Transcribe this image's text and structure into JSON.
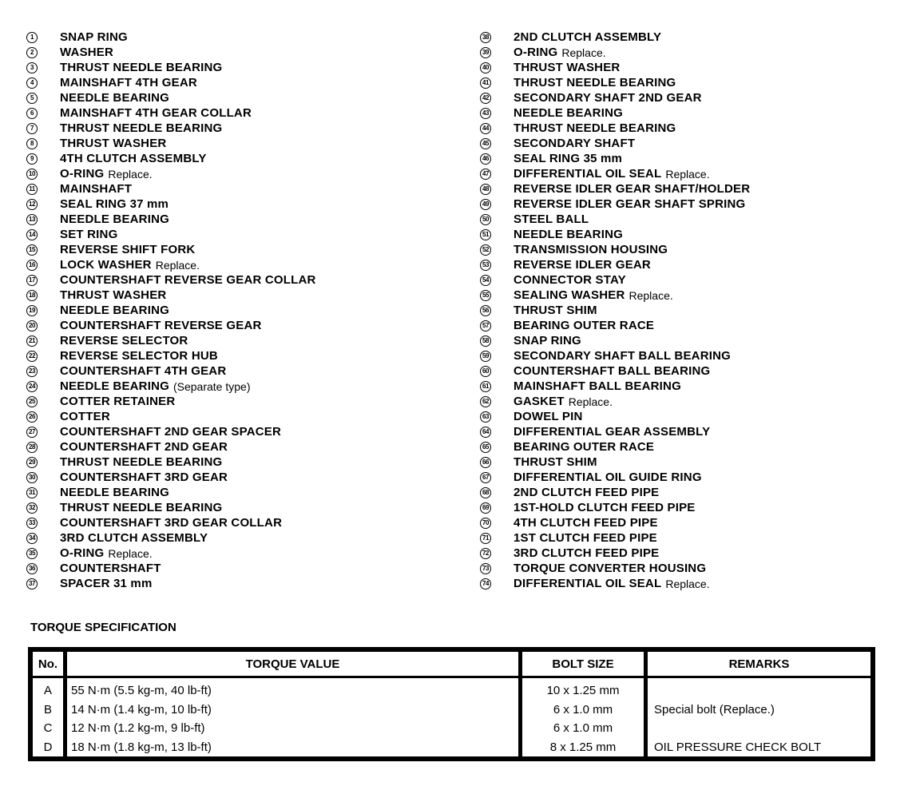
{
  "parts": [
    {
      "n": "1",
      "name": "SNAP RING",
      "note": ""
    },
    {
      "n": "2",
      "name": "WASHER",
      "note": ""
    },
    {
      "n": "3",
      "name": "THRUST NEEDLE BEARING",
      "note": ""
    },
    {
      "n": "4",
      "name": "MAINSHAFT 4TH GEAR",
      "note": ""
    },
    {
      "n": "5",
      "name": "NEEDLE BEARING",
      "note": ""
    },
    {
      "n": "6",
      "name": "MAINSHAFT 4TH GEAR COLLAR",
      "note": ""
    },
    {
      "n": "7",
      "name": "THRUST NEEDLE BEARING",
      "note": ""
    },
    {
      "n": "8",
      "name": "THRUST WASHER",
      "note": ""
    },
    {
      "n": "9",
      "name": "4TH CLUTCH ASSEMBLY",
      "note": ""
    },
    {
      "n": "10",
      "name": "O-RING",
      "note": "Replace."
    },
    {
      "n": "11",
      "name": "MAINSHAFT",
      "note": ""
    },
    {
      "n": "12",
      "name": "SEAL RING 37 mm",
      "note": ""
    },
    {
      "n": "13",
      "name": "NEEDLE BEARING",
      "note": ""
    },
    {
      "n": "14",
      "name": "SET RING",
      "note": ""
    },
    {
      "n": "15",
      "name": "REVERSE SHIFT FORK",
      "note": ""
    },
    {
      "n": "16",
      "name": "LOCK WASHER",
      "note": "Replace."
    },
    {
      "n": "17",
      "name": "COUNTERSHAFT REVERSE GEAR COLLAR",
      "note": ""
    },
    {
      "n": "18",
      "name": "THRUST WASHER",
      "note": ""
    },
    {
      "n": "19",
      "name": "NEEDLE BEARING",
      "note": ""
    },
    {
      "n": "20",
      "name": "COUNTERSHAFT REVERSE GEAR",
      "note": ""
    },
    {
      "n": "21",
      "name": "REVERSE SELECTOR",
      "note": ""
    },
    {
      "n": "22",
      "name": "REVERSE SELECTOR HUB",
      "note": ""
    },
    {
      "n": "23",
      "name": "COUNTERSHAFT 4TH GEAR",
      "note": ""
    },
    {
      "n": "24",
      "name": "NEEDLE BEARING",
      "note": "(Separate type)"
    },
    {
      "n": "25",
      "name": "COTTER RETAINER",
      "note": ""
    },
    {
      "n": "26",
      "name": "COTTER",
      "note": ""
    },
    {
      "n": "27",
      "name": "COUNTERSHAFT 2ND GEAR SPACER",
      "note": ""
    },
    {
      "n": "28",
      "name": "COUNTERSHAFT 2ND GEAR",
      "note": ""
    },
    {
      "n": "29",
      "name": "THRUST NEEDLE BEARING",
      "note": ""
    },
    {
      "n": "30",
      "name": "COUNTERSHAFT 3RD GEAR",
      "note": ""
    },
    {
      "n": "31",
      "name": "NEEDLE BEARING",
      "note": ""
    },
    {
      "n": "32",
      "name": "THRUST NEEDLE BEARING",
      "note": ""
    },
    {
      "n": "33",
      "name": "COUNTERSHAFT 3RD GEAR COLLAR",
      "note": ""
    },
    {
      "n": "34",
      "name": "3RD CLUTCH ASSEMBLY",
      "note": ""
    },
    {
      "n": "35",
      "name": "O-RING",
      "note": "Replace."
    },
    {
      "n": "36",
      "name": "COUNTERSHAFT",
      "note": ""
    },
    {
      "n": "37",
      "name": "SPACER 31 mm",
      "note": ""
    },
    {
      "n": "38",
      "name": "2ND CLUTCH ASSEMBLY",
      "note": ""
    },
    {
      "n": "39",
      "name": "O-RING",
      "note": "Replace."
    },
    {
      "n": "40",
      "name": "THRUST WASHER",
      "note": ""
    },
    {
      "n": "41",
      "name": "THRUST NEEDLE BEARING",
      "note": ""
    },
    {
      "n": "42",
      "name": "SECONDARY SHAFT 2ND GEAR",
      "note": ""
    },
    {
      "n": "43",
      "name": "NEEDLE BEARING",
      "note": ""
    },
    {
      "n": "44",
      "name": "THRUST NEEDLE BEARING",
      "note": ""
    },
    {
      "n": "45",
      "name": "SECONDARY SHAFT",
      "note": ""
    },
    {
      "n": "46",
      "name": "SEAL RING 35 mm",
      "note": ""
    },
    {
      "n": "47",
      "name": "DIFFERENTIAL OIL SEAL",
      "note": "Replace."
    },
    {
      "n": "48",
      "name": "REVERSE IDLER GEAR SHAFT/HOLDER",
      "note": ""
    },
    {
      "n": "49",
      "name": "REVERSE IDLER GEAR SHAFT SPRING",
      "note": ""
    },
    {
      "n": "50",
      "name": "STEEL BALL",
      "note": ""
    },
    {
      "n": "51",
      "name": "NEEDLE BEARING",
      "note": ""
    },
    {
      "n": "52",
      "name": "TRANSMISSION HOUSING",
      "note": ""
    },
    {
      "n": "53",
      "name": "REVERSE IDLER GEAR",
      "note": ""
    },
    {
      "n": "54",
      "name": "CONNECTOR STAY",
      "note": ""
    },
    {
      "n": "55",
      "name": "SEALING WASHER",
      "note": "Replace."
    },
    {
      "n": "56",
      "name": "THRUST SHIM",
      "note": ""
    },
    {
      "n": "57",
      "name": "BEARING OUTER RACE",
      "note": ""
    },
    {
      "n": "58",
      "name": "SNAP RING",
      "note": ""
    },
    {
      "n": "59",
      "name": "SECONDARY SHAFT BALL BEARING",
      "note": ""
    },
    {
      "n": "60",
      "name": "COUNTERSHAFT BALL BEARING",
      "note": ""
    },
    {
      "n": "61",
      "name": "MAINSHAFT BALL BEARING",
      "note": ""
    },
    {
      "n": "62",
      "name": "GASKET",
      "note": "Replace."
    },
    {
      "n": "63",
      "name": "DOWEL PIN",
      "note": ""
    },
    {
      "n": "64",
      "name": "DIFFERENTIAL GEAR ASSEMBLY",
      "note": ""
    },
    {
      "n": "65",
      "name": "BEARING OUTER RACE",
      "note": ""
    },
    {
      "n": "66",
      "name": "THRUST SHIM",
      "note": ""
    },
    {
      "n": "67",
      "name": "DIFFERENTIAL OIL GUIDE RING",
      "note": ""
    },
    {
      "n": "68",
      "name": "2ND CLUTCH FEED PIPE",
      "note": ""
    },
    {
      "n": "69",
      "name": "1ST-HOLD CLUTCH FEED PIPE",
      "note": ""
    },
    {
      "n": "70",
      "name": "4TH CLUTCH FEED PIPE",
      "note": ""
    },
    {
      "n": "71",
      "name": "1ST CLUTCH FEED PIPE",
      "note": ""
    },
    {
      "n": "72",
      "name": "3RD CLUTCH FEED PIPE",
      "note": ""
    },
    {
      "n": "73",
      "name": "TORQUE CONVERTER HOUSING",
      "note": ""
    },
    {
      "n": "74",
      "name": "DIFFERENTIAL OIL SEAL",
      "note": "Replace."
    }
  ],
  "torque": {
    "title": "TORQUE SPECIFICATION",
    "headers": [
      "No.",
      "TORQUE VALUE",
      "BOLT SIZE",
      "REMARKS"
    ],
    "rows": [
      [
        "A",
        "55 N·m (5.5 kg-m, 40 lb-ft)",
        "10 x 1.25 mm",
        ""
      ],
      [
        "B",
        "14 N·m (1.4 kg-m, 10 lb-ft)",
        "6 x 1.0 mm",
        "Special bolt (Replace.)"
      ],
      [
        "C",
        "12 N·m (1.2 kg-m, 9 lb-ft)",
        "6 x 1.0 mm",
        ""
      ],
      [
        "D",
        "18 N·m (1.8 kg-m, 13 lb-ft)",
        "8 x 1.25 mm",
        "OIL PRESSURE CHECK BOLT"
      ]
    ]
  }
}
